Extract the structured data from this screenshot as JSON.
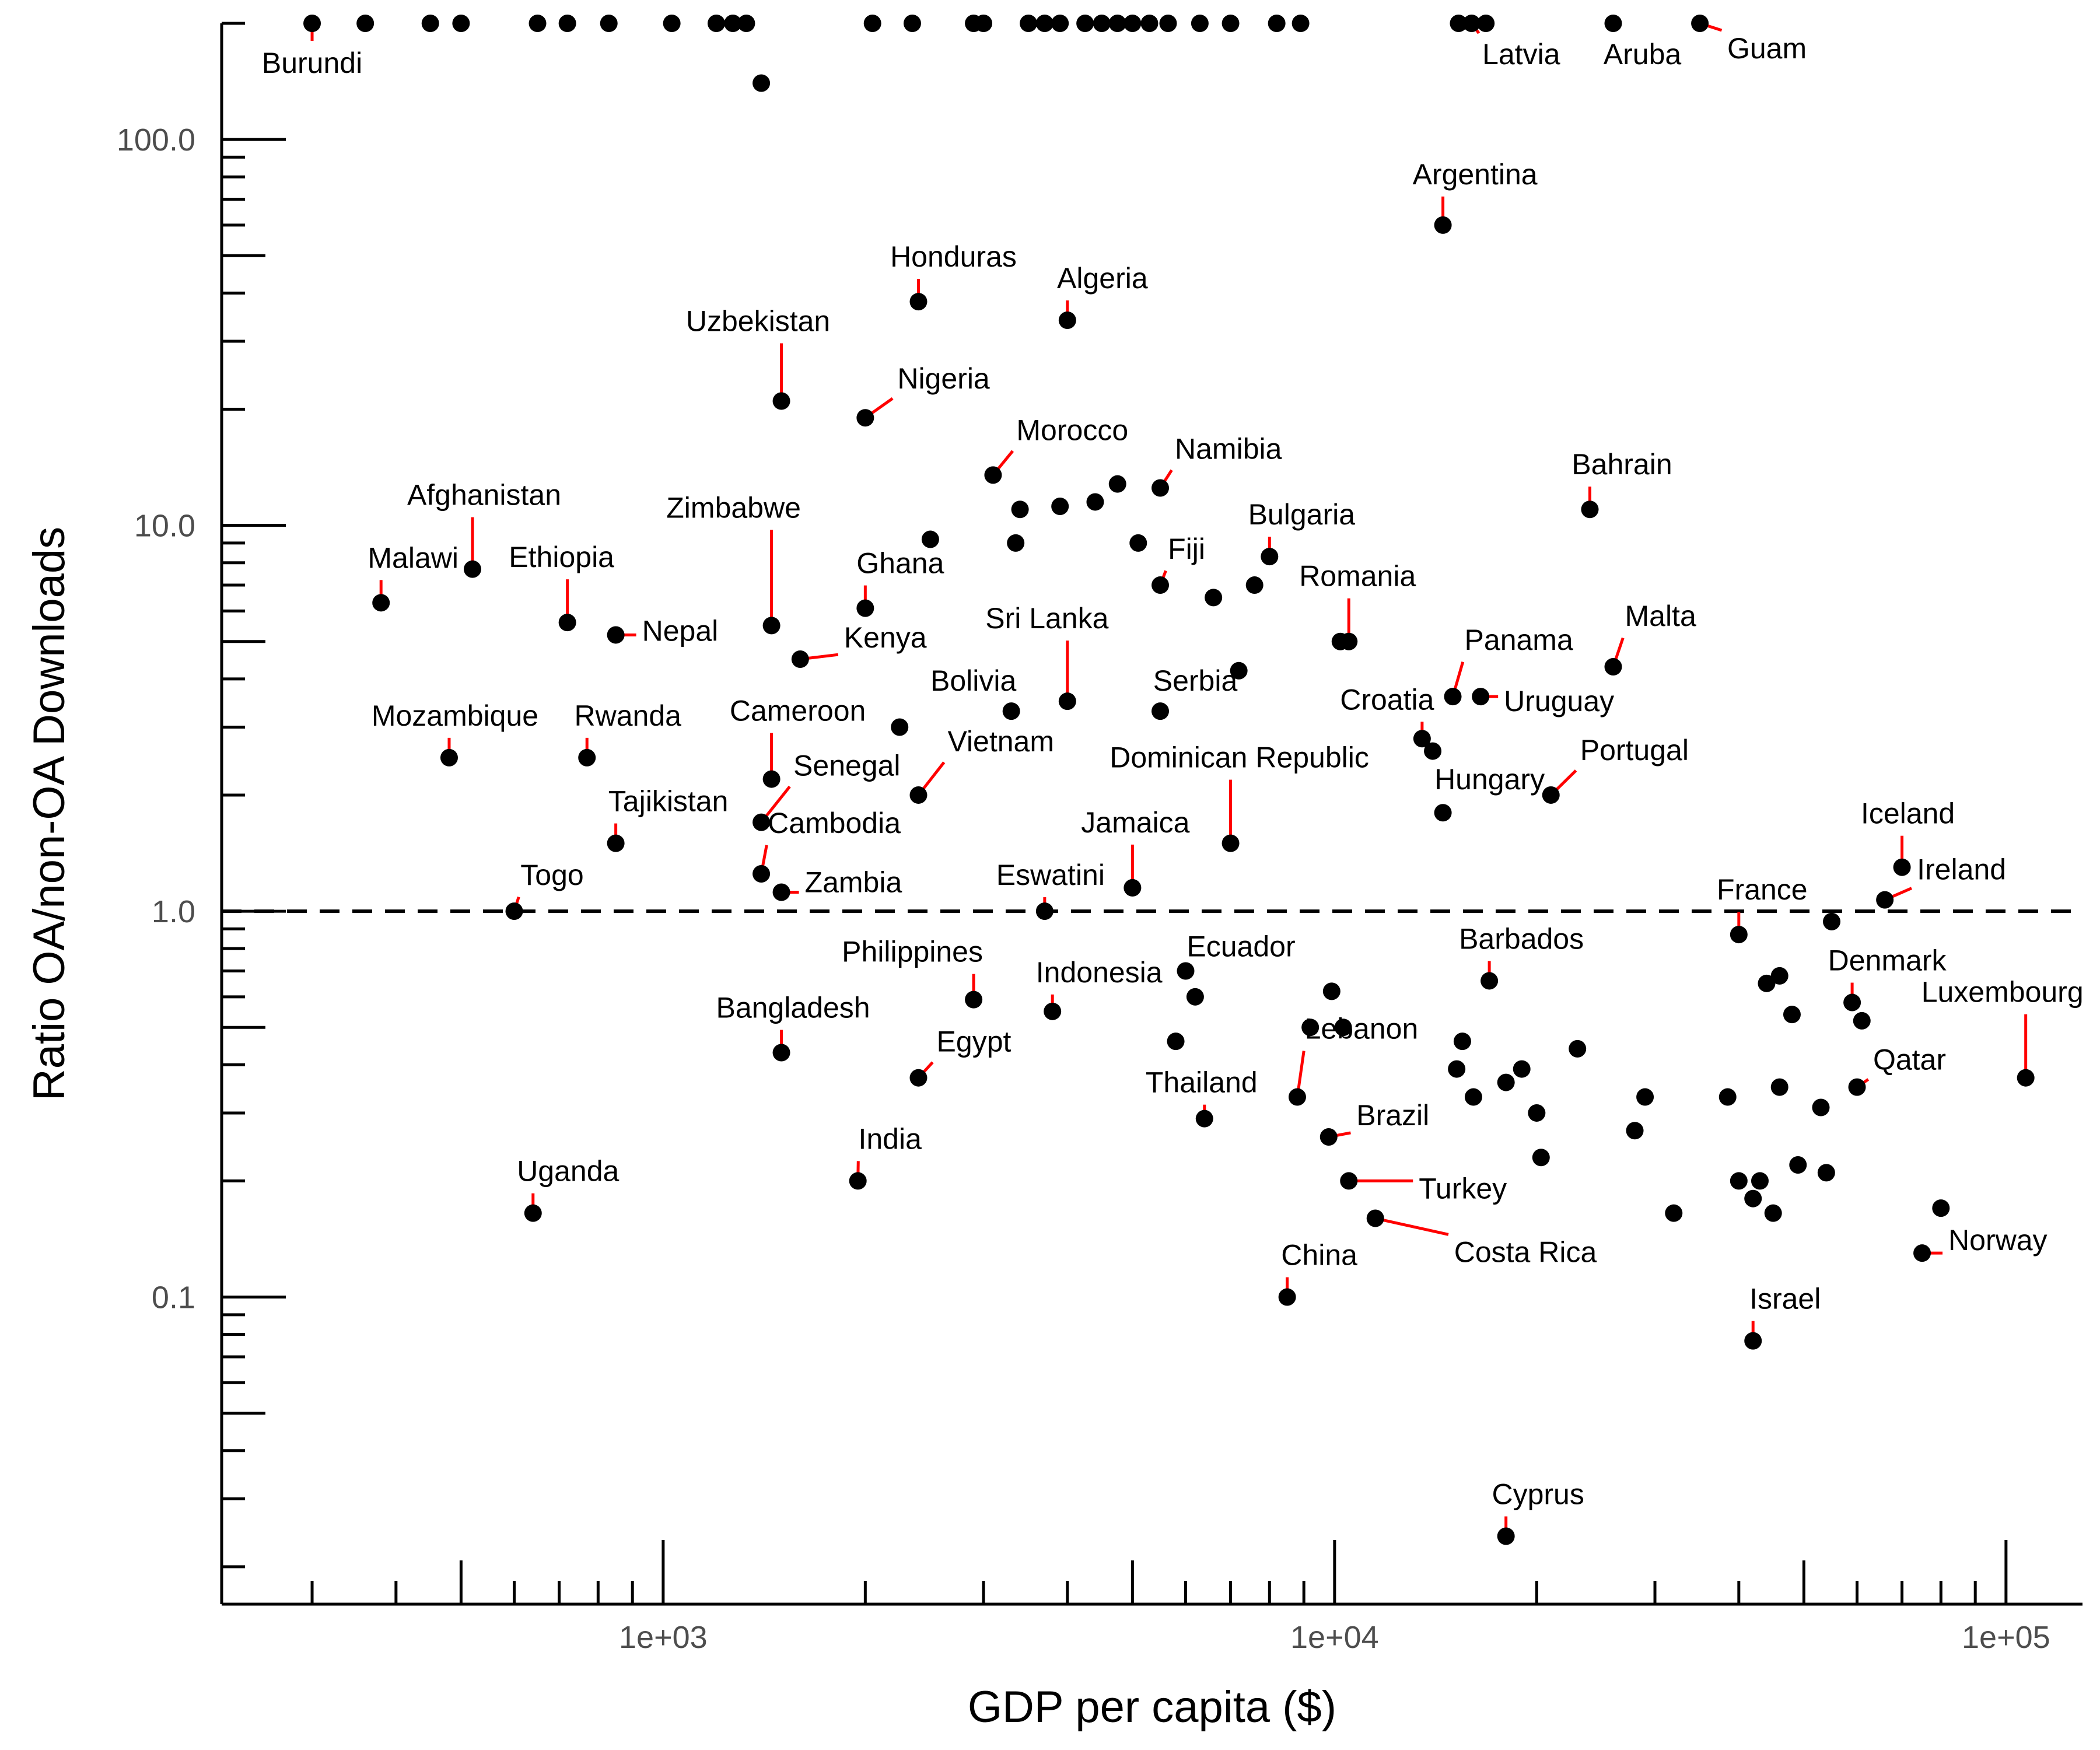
{
  "chart_data": {
    "type": "scatter",
    "xlabel": "GDP per capita ($)",
    "ylabel": "Ratio OA/non-OA Downloads",
    "x_scale": "log10",
    "y_scale": "log10",
    "xlim": [
      220,
      130000
    ],
    "ylim": [
      0.016,
      200
    ],
    "x_ticks": [
      {
        "value": 1000,
        "label": "1e+03"
      },
      {
        "value": 10000,
        "label": "1e+04"
      },
      {
        "value": 100000,
        "label": "1e+05"
      }
    ],
    "y_ticks": [
      {
        "value": 0.1,
        "label": "0.1"
      },
      {
        "value": 1,
        "label": "1.0"
      },
      {
        "value": 10,
        "label": "10.0"
      },
      {
        "value": 100,
        "label": "100.0"
      }
    ],
    "reference_line": {
      "y": 1,
      "style": "dashed"
    },
    "grid": false,
    "colors": {
      "point": "#000000",
      "leader": "#ff0000",
      "axis": "#000000",
      "tick_text": "#4d4d4d"
    },
    "points": [
      {
        "name": "Burundi",
        "x": 300,
        "y": 200
      },
      {
        "name": "Latvia",
        "x": 16000,
        "y": 200
      },
      {
        "name": "Aruba",
        "x": 26000,
        "y": 200
      },
      {
        "name": "Guam",
        "x": 35000,
        "y": 200
      },
      {
        "name": "Argentina",
        "x": 14500,
        "y": 60
      },
      {
        "name": "Honduras",
        "x": 2400,
        "y": 38
      },
      {
        "name": "Algeria",
        "x": 4000,
        "y": 34
      },
      {
        "name": "Uzbekistan",
        "x": 1500,
        "y": 21
      },
      {
        "name": "Nigeria",
        "x": 2000,
        "y": 19
      },
      {
        "name": "Morocco",
        "x": 3100,
        "y": 13.5
      },
      {
        "name": "Namibia",
        "x": 5500,
        "y": 12.5
      },
      {
        "name": "Bahrain",
        "x": 24000,
        "y": 11
      },
      {
        "name": "Bulgaria",
        "x": 8000,
        "y": 8.3
      },
      {
        "name": "Afghanistan",
        "x": 520,
        "y": 7.7
      },
      {
        "name": "Fiji",
        "x": 5500,
        "y": 7
      },
      {
        "name": "Malawi",
        "x": 380,
        "y": 6.3
      },
      {
        "name": "Ghana",
        "x": 2000,
        "y": 6.1
      },
      {
        "name": "Ethiopia",
        "x": 720,
        "y": 5.6
      },
      {
        "name": "Zimbabwe",
        "x": 1450,
        "y": 5.5
      },
      {
        "name": "Nepal",
        "x": 850,
        "y": 5.2
      },
      {
        "name": "Romania",
        "x": 10500,
        "y": 5
      },
      {
        "name": "Kenya",
        "x": 1600,
        "y": 4.5
      },
      {
        "name": "Malta",
        "x": 26000,
        "y": 4.3
      },
      {
        "name": "Panama",
        "x": 15000,
        "y": 3.6
      },
      {
        "name": "Uruguay",
        "x": 16500,
        "y": 3.6
      },
      {
        "name": "Sri Lanka",
        "x": 4000,
        "y": 3.5
      },
      {
        "name": "Bolivia",
        "x": 3300,
        "y": 3.3
      },
      {
        "name": "Serbia",
        "x": 5500,
        "y": 3.3
      },
      {
        "name": "Croatia",
        "x": 13500,
        "y": 2.8
      },
      {
        "name": "Mozambique",
        "x": 480,
        "y": 2.5
      },
      {
        "name": "Rwanda",
        "x": 770,
        "y": 2.5
      },
      {
        "name": "Cameroon",
        "x": 1450,
        "y": 2.2
      },
      {
        "name": "Senegal",
        "x": 1400,
        "y": 1.7
      },
      {
        "name": "Vietnam",
        "x": 2400,
        "y": 2
      },
      {
        "name": "Portugal",
        "x": 21000,
        "y": 2
      },
      {
        "name": "Hungary",
        "x": 14500,
        "y": 1.8
      },
      {
        "name": "Dominican Republic",
        "x": 7000,
        "y": 1.5
      },
      {
        "name": "Tajikistan",
        "x": 850,
        "y": 1.5
      },
      {
        "name": "Iceland",
        "x": 70000,
        "y": 1.3
      },
      {
        "name": "Cambodia",
        "x": 1400,
        "y": 1.25
      },
      {
        "name": "Jamaica",
        "x": 5000,
        "y": 1.15
      },
      {
        "name": "Zambia",
        "x": 1500,
        "y": 1.12
      },
      {
        "name": "Ireland",
        "x": 66000,
        "y": 1.07
      },
      {
        "name": "Togo",
        "x": 600,
        "y": 1
      },
      {
        "name": "Eswatini",
        "x": 3700,
        "y": 1
      },
      {
        "name": "France",
        "x": 40000,
        "y": 0.87
      },
      {
        "name": "Ecuador",
        "x": 6000,
        "y": 0.7
      },
      {
        "name": "Barbados",
        "x": 17000,
        "y": 0.66
      },
      {
        "name": "Philippines",
        "x": 2900,
        "y": 0.59
      },
      {
        "name": "Denmark",
        "x": 59000,
        "y": 0.58
      },
      {
        "name": "Indonesia",
        "x": 3800,
        "y": 0.55
      },
      {
        "name": "Bangladesh",
        "x": 1500,
        "y": 0.43
      },
      {
        "name": "Egypt",
        "x": 2400,
        "y": 0.37
      },
      {
        "name": "Luxembourg",
        "x": 107000,
        "y": 0.37
      },
      {
        "name": "Qatar",
        "x": 60000,
        "y": 0.35
      },
      {
        "name": "Lebanon",
        "x": 8800,
        "y": 0.33
      },
      {
        "name": "Thailand",
        "x": 6400,
        "y": 0.29
      },
      {
        "name": "Brazil",
        "x": 9800,
        "y": 0.26
      },
      {
        "name": "India",
        "x": 1950,
        "y": 0.2
      },
      {
        "name": "Turkey",
        "x": 10500,
        "y": 0.2
      },
      {
        "name": "Uganda",
        "x": 640,
        "y": 0.165
      },
      {
        "name": "Costa Rica",
        "x": 11500,
        "y": 0.16
      },
      {
        "name": "Norway",
        "x": 75000,
        "y": 0.13
      },
      {
        "name": "China",
        "x": 8500,
        "y": 0.1
      },
      {
        "name": "Israel",
        "x": 42000,
        "y": 0.077
      },
      {
        "name": "Cyprus",
        "x": 18000,
        "y": 0.024
      },
      {
        "name": "",
        "x": 360,
        "y": 200
      },
      {
        "name": "",
        "x": 450,
        "y": 200
      },
      {
        "name": "",
        "x": 500,
        "y": 200
      },
      {
        "name": "",
        "x": 650,
        "y": 200
      },
      {
        "name": "",
        "x": 720,
        "y": 200
      },
      {
        "name": "",
        "x": 830,
        "y": 200
      },
      {
        "name": "",
        "x": 1030,
        "y": 200
      },
      {
        "name": "",
        "x": 1200,
        "y": 200
      },
      {
        "name": "",
        "x": 1270,
        "y": 200
      },
      {
        "name": "",
        "x": 1330,
        "y": 200
      },
      {
        "name": "",
        "x": 2050,
        "y": 200
      },
      {
        "name": "",
        "x": 2350,
        "y": 200
      },
      {
        "name": "",
        "x": 2900,
        "y": 200
      },
      {
        "name": "",
        "x": 3000,
        "y": 200
      },
      {
        "name": "",
        "x": 3500,
        "y": 200
      },
      {
        "name": "",
        "x": 3700,
        "y": 200
      },
      {
        "name": "",
        "x": 3900,
        "y": 200
      },
      {
        "name": "",
        "x": 4250,
        "y": 200
      },
      {
        "name": "",
        "x": 4500,
        "y": 200
      },
      {
        "name": "",
        "x": 4750,
        "y": 200
      },
      {
        "name": "",
        "x": 5000,
        "y": 200
      },
      {
        "name": "",
        "x": 5300,
        "y": 200
      },
      {
        "name": "",
        "x": 5650,
        "y": 200
      },
      {
        "name": "",
        "x": 6300,
        "y": 200
      },
      {
        "name": "",
        "x": 7000,
        "y": 200
      },
      {
        "name": "",
        "x": 8200,
        "y": 200
      },
      {
        "name": "",
        "x": 8900,
        "y": 200
      },
      {
        "name": "",
        "x": 15300,
        "y": 200
      },
      {
        "name": "",
        "x": 16800,
        "y": 200
      },
      {
        "name": "",
        "x": 1400,
        "y": 140
      },
      {
        "name": "",
        "x": 3400,
        "y": 11
      },
      {
        "name": "",
        "x": 3900,
        "y": 11.2
      },
      {
        "name": "",
        "x": 4400,
        "y": 11.5
      },
      {
        "name": "",
        "x": 4750,
        "y": 12.8
      },
      {
        "name": "",
        "x": 2500,
        "y": 9.2
      },
      {
        "name": "",
        "x": 3350,
        "y": 9
      },
      {
        "name": "",
        "x": 5100,
        "y": 9
      },
      {
        "name": "",
        "x": 6600,
        "y": 6.5
      },
      {
        "name": "",
        "x": 7600,
        "y": 7
      },
      {
        "name": "",
        "x": 10200,
        "y": 5
      },
      {
        "name": "",
        "x": 7200,
        "y": 4.2
      },
      {
        "name": "",
        "x": 2250,
        "y": 3
      },
      {
        "name": "",
        "x": 14000,
        "y": 2.6
      },
      {
        "name": "",
        "x": 55000,
        "y": 0.94
      },
      {
        "name": "",
        "x": 46000,
        "y": 0.68
      },
      {
        "name": "",
        "x": 44000,
        "y": 0.65
      },
      {
        "name": "",
        "x": 48000,
        "y": 0.54
      },
      {
        "name": "",
        "x": 61000,
        "y": 0.52
      },
      {
        "name": "",
        "x": 6200,
        "y": 0.6
      },
      {
        "name": "",
        "x": 5800,
        "y": 0.46
      },
      {
        "name": "",
        "x": 9900,
        "y": 0.62
      },
      {
        "name": "",
        "x": 9200,
        "y": 0.5
      },
      {
        "name": "",
        "x": 10300,
        "y": 0.5
      },
      {
        "name": "",
        "x": 15500,
        "y": 0.46
      },
      {
        "name": "",
        "x": 15200,
        "y": 0.39
      },
      {
        "name": "",
        "x": 16100,
        "y": 0.33
      },
      {
        "name": "",
        "x": 18000,
        "y": 0.36
      },
      {
        "name": "",
        "x": 19000,
        "y": 0.39
      },
      {
        "name": "",
        "x": 20000,
        "y": 0.3
      },
      {
        "name": "",
        "x": 20300,
        "y": 0.23
      },
      {
        "name": "",
        "x": 23000,
        "y": 0.44
      },
      {
        "name": "",
        "x": 29000,
        "y": 0.33
      },
      {
        "name": "",
        "x": 28000,
        "y": 0.27
      },
      {
        "name": "",
        "x": 32000,
        "y": 0.165
      },
      {
        "name": "",
        "x": 38500,
        "y": 0.33
      },
      {
        "name": "",
        "x": 40000,
        "y": 0.2
      },
      {
        "name": "",
        "x": 42000,
        "y": 0.18
      },
      {
        "name": "",
        "x": 43000,
        "y": 0.2
      },
      {
        "name": "",
        "x": 45000,
        "y": 0.165
      },
      {
        "name": "",
        "x": 46000,
        "y": 0.35
      },
      {
        "name": "",
        "x": 49000,
        "y": 0.22
      },
      {
        "name": "",
        "x": 53000,
        "y": 0.31
      },
      {
        "name": "",
        "x": 54000,
        "y": 0.21
      },
      {
        "name": "",
        "x": 80000,
        "y": 0.17
      }
    ]
  }
}
